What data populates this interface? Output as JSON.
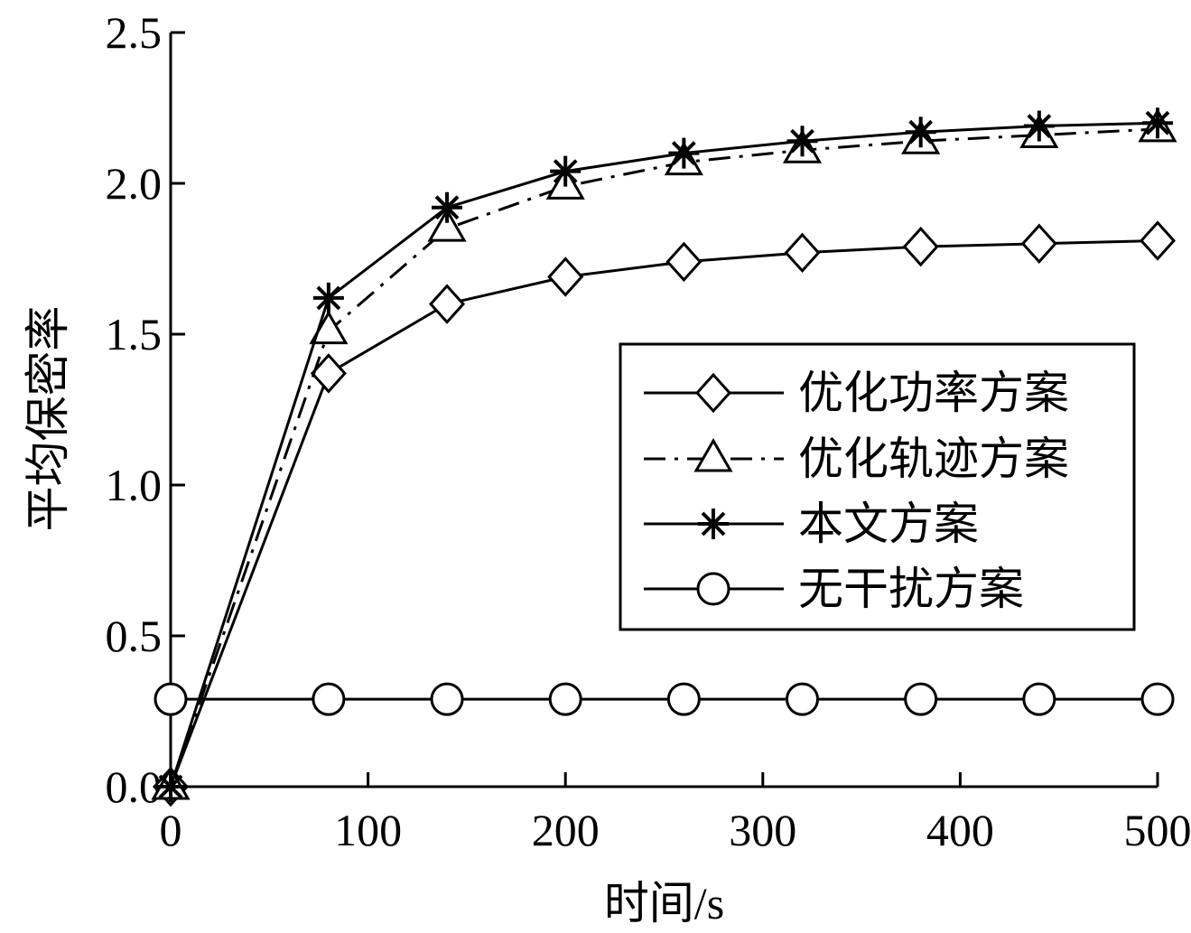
{
  "chart_data": {
    "type": "line",
    "xlabel": "时间/s",
    "ylabel": "平均保密率",
    "xlim": [
      0,
      500
    ],
    "ylim": [
      0,
      2.5
    ],
    "xticks": [
      0,
      100,
      200,
      300,
      400,
      500
    ],
    "yticks": [
      0.0,
      0.5,
      1.0,
      1.5,
      2.0,
      2.5
    ],
    "xtick_labels": [
      "0",
      "100",
      "200",
      "300",
      "400",
      "500"
    ],
    "ytick_labels": [
      "0.0",
      "0.5",
      "1.0",
      "1.5",
      "2.0",
      "2.5"
    ],
    "grid": false,
    "legend_position": "center-right",
    "series": [
      {
        "name": "优化功率方案",
        "marker": "diamond",
        "linestyle": "solid",
        "color": "#000000",
        "x": [
          0,
          80,
          140,
          200,
          260,
          320,
          380,
          440,
          500
        ],
        "y": [
          0.0,
          1.37,
          1.6,
          1.69,
          1.74,
          1.77,
          1.79,
          1.8,
          1.81
        ]
      },
      {
        "name": "优化轨迹方案",
        "marker": "triangle",
        "linestyle": "dashdot",
        "color": "#000000",
        "x": [
          0,
          80,
          140,
          200,
          260,
          320,
          380,
          440,
          500
        ],
        "y": [
          0.0,
          1.51,
          1.85,
          1.99,
          2.07,
          2.11,
          2.14,
          2.16,
          2.18
        ]
      },
      {
        "name": "本文方案",
        "marker": "asterisk",
        "linestyle": "solid",
        "color": "#000000",
        "x": [
          0,
          80,
          140,
          200,
          260,
          320,
          380,
          440,
          500
        ],
        "y": [
          0.0,
          1.62,
          1.92,
          2.04,
          2.1,
          2.14,
          2.17,
          2.19,
          2.2
        ]
      },
      {
        "name": "无干扰方案",
        "marker": "circle",
        "linestyle": "solid",
        "color": "#000000",
        "x": [
          0,
          80,
          140,
          200,
          260,
          320,
          380,
          440,
          500
        ],
        "y": [
          0.29,
          0.29,
          0.29,
          0.29,
          0.29,
          0.29,
          0.29,
          0.29,
          0.29
        ]
      }
    ]
  }
}
